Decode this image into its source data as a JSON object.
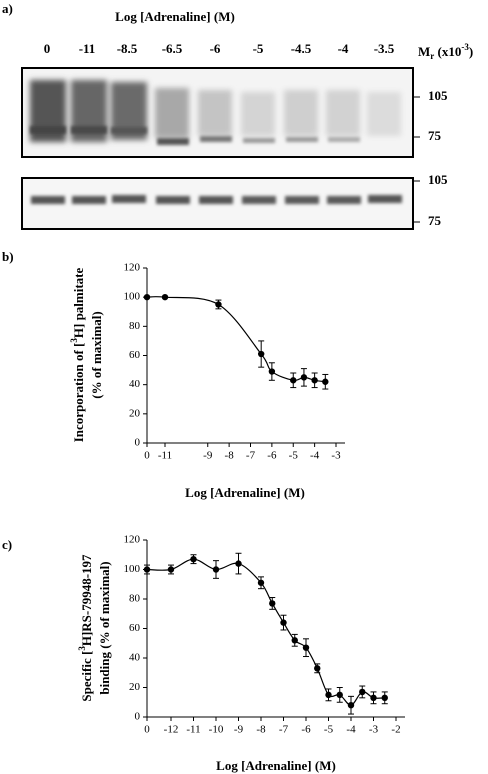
{
  "blot": {
    "label": "a)",
    "title": "Log [Adrenaline] (M)",
    "lanes": [
      "0",
      "-11",
      "-8.5",
      "-6.5",
      "-6",
      "-5",
      "-4.5",
      "-4",
      "-3.5"
    ],
    "mr": [
      "M",
      "r",
      " (x10",
      "-3",
      ")"
    ],
    "markers_top": [
      "105",
      "75"
    ],
    "markers_bottom": [
      "105",
      "75"
    ]
  },
  "chart_data": [
    {
      "type": "scatter",
      "label": "b)",
      "ylabel": [
        [
          "Incorporation of [",
          "3",
          "H] palmitate"
        ],
        [
          "(% of maximal)"
        ]
      ],
      "xlabel": "Log [Adrenaline] (M)",
      "x": [
        0,
        -11,
        -8.5,
        -6.5,
        -6,
        -5,
        -4.5,
        -4,
        -3.5
      ],
      "values": [
        100,
        100,
        95,
        61,
        49,
        43,
        45,
        43,
        42
      ],
      "errors": [
        0,
        0,
        3,
        9,
        6,
        5,
        6,
        5,
        5
      ],
      "xlim": [
        -11,
        -3
      ],
      "xticks": [
        0,
        -11,
        -9,
        -8,
        -7,
        -6,
        -5,
        -4,
        -3
      ],
      "ylim": [
        0,
        120
      ],
      "yticks": [
        0,
        20,
        40,
        60,
        80,
        100,
        120
      ],
      "color": "#000000"
    },
    {
      "type": "scatter",
      "label": "c)",
      "ylabel": [
        [
          "Specific [",
          "3",
          "H]RS-79948-197"
        ],
        [
          "binding (% of maximal)"
        ]
      ],
      "xlabel": "Log [Adrenaline] (M)",
      "x": [
        0,
        -12,
        -11,
        -10,
        -9,
        -8,
        -7.5,
        -7,
        -6.5,
        -6,
        -5.5,
        -5,
        -4.5,
        -4,
        -3.5,
        -3,
        -2.5
      ],
      "values": [
        100,
        100,
        107,
        100,
        104,
        91,
        77,
        64,
        52,
        47,
        33,
        15,
        15,
        8,
        17,
        13,
        13
      ],
      "errors": [
        3,
        3,
        3,
        6,
        7,
        4,
        4,
        5,
        4,
        6,
        3,
        4,
        5,
        6,
        4,
        4,
        4
      ],
      "xlim": [
        -12,
        -2
      ],
      "xticks": [
        0,
        -12,
        -11,
        -10,
        -9,
        -8,
        -7,
        -6,
        -5,
        -4,
        -3,
        -2
      ],
      "ylim": [
        0,
        120
      ],
      "yticks": [
        0,
        20,
        40,
        60,
        80,
        100,
        120
      ],
      "color": "#000000"
    }
  ]
}
